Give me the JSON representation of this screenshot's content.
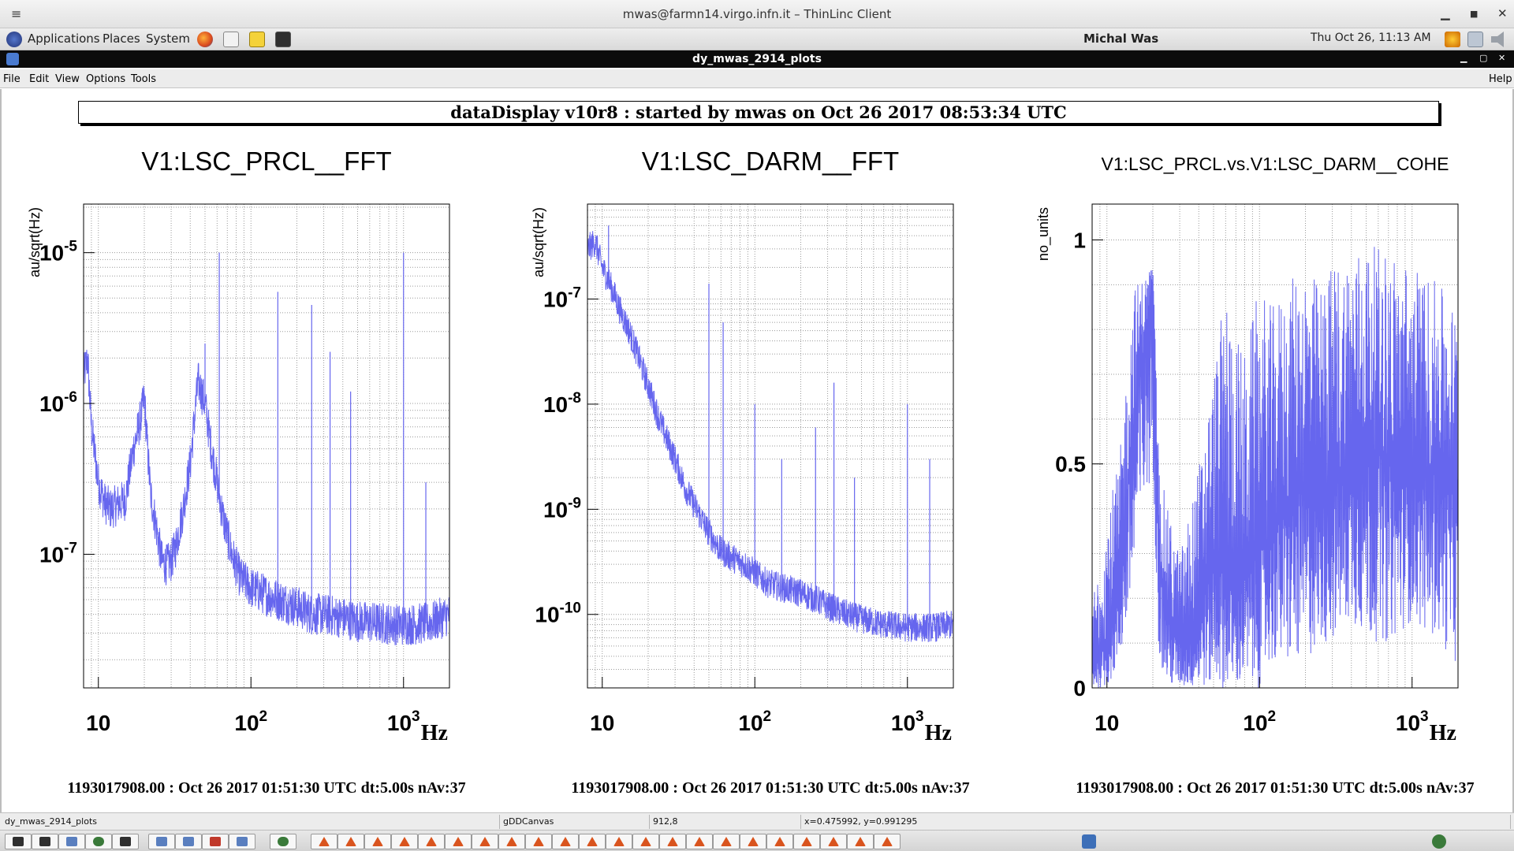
{
  "window": {
    "outer_title": "mwas@farmn14.virgo.infn.it – ThinLinc Client",
    "app_title": "dy_mwas_2914_plots"
  },
  "panel": {
    "menus": [
      "Applications",
      "Places",
      "System"
    ],
    "user": "Michal Was",
    "clock": "Thu Oct 26, 11:13 AM",
    "launcher_icons": [
      "firefox-icon",
      "mail-icon",
      "notes-icon",
      "terminal-icon"
    ],
    "tray_icons": [
      "weather-icon",
      "network-icon",
      "volume-icon"
    ]
  },
  "menubar": {
    "items": [
      "File",
      "Edit",
      "View",
      "Options",
      "Tools"
    ],
    "help": "Help"
  },
  "canvas": {
    "banner": "dataDisplay v10r8 : started by mwas on Oct 26 2017 08:53:34 UTC"
  },
  "plots": [
    {
      "title": "V1:LSC_PRCL__FFT",
      "ylabel": "au/sqrt(Hz)",
      "xlabel": "Hz",
      "x_scale": "log",
      "y_scale": "log",
      "x_ticks": [
        "10",
        "10^2",
        "10^3"
      ],
      "y_ticks": [
        "10^-5",
        "10^-6",
        "10^-7"
      ],
      "footer": "1193017908.00 : Oct 26 2017 01:51:30 UTC dt:5.00s nAv:37"
    },
    {
      "title": "V1:LSC_DARM__FFT",
      "ylabel": "au/sqrt(Hz)",
      "xlabel": "Hz",
      "x_scale": "log",
      "y_scale": "log",
      "x_ticks": [
        "10",
        "10^2",
        "10^3"
      ],
      "y_ticks": [
        "10^-7",
        "10^-8",
        "10^-9",
        "10^-10"
      ],
      "footer": "1193017908.00 : Oct 26 2017 01:51:30 UTC dt:5.00s nAv:37"
    },
    {
      "title": "V1:LSC_PRCL.vs.V1:LSC_DARM__COHE",
      "ylabel": "no_units",
      "xlabel": "Hz",
      "x_scale": "log",
      "y_scale": "linear",
      "x_ticks": [
        "10",
        "10^2",
        "10^3"
      ],
      "y_ticks": [
        "1",
        "0.5",
        "0"
      ],
      "footer": "1193017908.00 : Oct 26 2017 01:51:30 UTC dt:5.00s nAv:37"
    }
  ],
  "chart_data": [
    {
      "type": "line",
      "title": "V1:LSC_PRCL__FFT",
      "xlabel": "Hz",
      "ylabel": "au/sqrt(Hz)",
      "x_scale": "log",
      "y_scale": "log",
      "xlim": [
        8,
        2000
      ],
      "ylim": [
        1.3e-08,
        2.1e-05
      ],
      "grid": true,
      "color": "#6666ee",
      "x": [
        8,
        8.5,
        9,
        10,
        11,
        12,
        13,
        15,
        17,
        19,
        20,
        21,
        22,
        24,
        26,
        28,
        30,
        32,
        36,
        40,
        45,
        50,
        55,
        60,
        64,
        68,
        75,
        85,
        100,
        120,
        150,
        200,
        250,
        300,
        400,
        500,
        700,
        1000,
        1500,
        2000
      ],
      "y": [
        1.5e-06,
        2e-06,
        7e-07,
        3e-07,
        2.2e-07,
        2e-07,
        2.1e-07,
        2.3e-07,
        5e-07,
        8e-07,
        1.1e-06,
        5e-07,
        2.5e-07,
        1.5e-07,
        9e-08,
        8.5e-08,
        9e-08,
        1.1e-07,
        2e-07,
        4e-07,
        1.4e-06,
        1e-06,
        5e-07,
        3e-07,
        2e-07,
        1.5e-07,
        1e-07,
        7e-08,
        6e-08,
        5.5e-08,
        5e-08,
        4.5e-08,
        4e-08,
        4e-08,
        3.8e-08,
        3.6e-08,
        3.5e-08,
        3.4e-08,
        3.5e-08,
        4e-08
      ],
      "peaks": [
        [
          50,
          2.5e-06
        ],
        [
          62,
          1e-05
        ],
        [
          150,
          5.5e-06
        ],
        [
          250,
          4.5e-06
        ],
        [
          330,
          2.2e-06
        ],
        [
          450,
          1.2e-06
        ],
        [
          1000,
          1e-05
        ],
        [
          1400,
          3e-07
        ]
      ]
    },
    {
      "type": "line",
      "title": "V1:LSC_DARM__FFT",
      "xlabel": "Hz",
      "ylabel": "au/sqrt(Hz)",
      "x_scale": "log",
      "y_scale": "log",
      "xlim": [
        8,
        2000
      ],
      "ylim": [
        2e-11,
        8e-07
      ],
      "grid": true,
      "color": "#6666ee",
      "x": [
        8,
        9,
        10,
        11,
        12,
        13,
        15,
        17,
        20,
        23,
        26,
        30,
        35,
        40,
        45,
        50,
        60,
        70,
        85,
        100,
        120,
        150,
        200,
        250,
        300,
        400,
        500,
        700,
        1000,
        1500,
        2000
      ],
      "y": [
        3e-07,
        3.5e-07,
        2e-07,
        1.5e-07,
        1.1e-07,
        8e-08,
        5e-08,
        3e-08,
        1.5e-08,
        8e-09,
        5e-09,
        3e-09,
        1.6e-09,
        1.1e-09,
        8e-10,
        6e-10,
        4e-10,
        3.5e-10,
        3e-10,
        2.5e-10,
        2e-10,
        1.8e-10,
        1.6e-10,
        1.4e-10,
        1.2e-10,
        1e-10,
        9e-11,
        8e-11,
        7.5e-11,
        7.5e-11,
        8e-11
      ],
      "peaks": [
        [
          11,
          5e-07
        ],
        [
          50,
          1.4e-07
        ],
        [
          62,
          6e-08
        ],
        [
          100,
          1e-08
        ],
        [
          150,
          3e-09
        ],
        [
          250,
          6e-09
        ],
        [
          330,
          1.6e-08
        ],
        [
          450,
          2e-09
        ],
        [
          1000,
          1e-08
        ],
        [
          1400,
          3e-09
        ]
      ]
    },
    {
      "type": "line",
      "title": "V1:LSC_PRCL.vs.V1:LSC_DARM__COHE",
      "xlabel": "Hz",
      "ylabel": "no_units",
      "x_scale": "log",
      "y_scale": "linear",
      "xlim": [
        8,
        2000
      ],
      "ylim": [
        0,
        1.08
      ],
      "grid": true,
      "color": "#6666ee",
      "x": [
        8,
        10,
        12,
        15,
        18,
        20,
        22,
        25,
        30,
        35,
        40,
        50,
        60,
        70,
        80,
        100,
        120,
        150,
        200,
        250,
        300,
        400,
        500,
        700,
        1000,
        1500,
        2000
      ],
      "y": [
        0.05,
        0.1,
        0.2,
        0.6,
        0.8,
        0.9,
        0.3,
        0.15,
        0.1,
        0.1,
        0.15,
        0.3,
        0.25,
        0.2,
        0.25,
        0.3,
        0.35,
        0.4,
        0.45,
        0.4,
        0.45,
        0.5,
        0.55,
        0.5,
        0.45,
        0.5,
        0.4
      ],
      "envelope_max": [
        0.2,
        0.4,
        0.5,
        0.9,
        0.92,
        0.95,
        0.5,
        0.4,
        0.3,
        0.4,
        0.5,
        0.7,
        0.9,
        0.8,
        0.75,
        0.9,
        0.85,
        0.9,
        0.95,
        0.9,
        0.95,
        0.98,
        0.99,
        0.98,
        0.95,
        0.9,
        0.85
      ],
      "envelope_min": [
        0.0,
        0.0,
        0.05,
        0.2,
        0.4,
        0.5,
        0.05,
        0.0,
        0.0,
        0.0,
        0.0,
        0.0,
        0.0,
        0.0,
        0.0,
        0.0,
        0.05,
        0.05,
        0.05,
        0.1,
        0.1,
        0.15,
        0.1,
        0.1,
        0.15,
        0.1,
        0.05
      ]
    }
  ],
  "statusbar": {
    "canvas_name": "dy_mwas_2914_plots",
    "object": "gDDCanvas",
    "pixel": "912,8",
    "coords": "x=0.475992, y=0.991295"
  },
  "taskbar": {
    "button_icons": [
      "terminal-icon",
      "terminal-icon",
      "window-icon",
      "chrome-icon",
      "terminal-icon",
      "window-icon",
      "window-icon",
      "app-icon",
      "window-icon",
      "chrome-icon",
      "matlab-icon",
      "matlab-icon",
      "matlab-icon",
      "matlab-icon",
      "matlab-icon",
      "matlab-icon",
      "matlab-icon",
      "matlab-icon",
      "matlab-icon",
      "matlab-icon",
      "matlab-icon",
      "matlab-icon",
      "matlab-icon",
      "matlab-icon",
      "matlab-icon",
      "matlab-icon",
      "matlab-icon",
      "matlab-icon",
      "matlab-icon",
      "matlab-icon",
      "matlab-icon",
      "matlab-icon"
    ],
    "tray_icon": "chrome-icon"
  },
  "colors": {
    "trace": "#6666ee",
    "grid": "#9a9a9a",
    "app_titlebar": "#0c0c0c"
  }
}
